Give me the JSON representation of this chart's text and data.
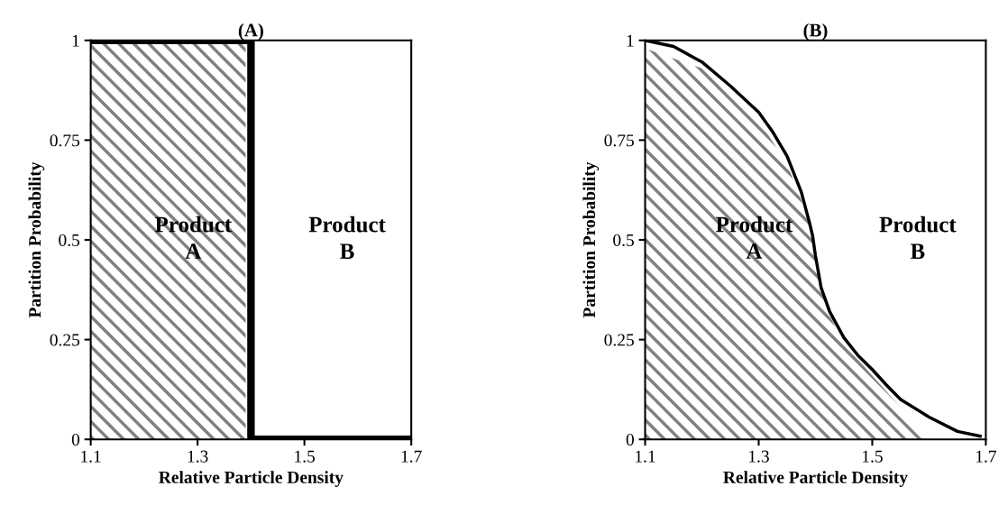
{
  "chart_data": [
    {
      "type": "line",
      "title": "(A)",
      "xlabel": "Relative Particle Density",
      "ylabel": "Partition Probability",
      "xlim": [
        1.1,
        1.7
      ],
      "xticks": [
        1.1,
        1.3,
        1.5,
        1.7
      ],
      "ylim": [
        0,
        1
      ],
      "yticks": [
        0,
        0.25,
        0.5,
        0.75,
        1
      ],
      "grid": false,
      "annotations": [
        "Product\nA",
        "Product\nB"
      ],
      "series": [
        {
          "type": "area",
          "color": "#808080",
          "x": [
            1.1,
            1.39
          ],
          "values": [
            1,
            1
          ]
        },
        {
          "type": "line",
          "color": "#000000",
          "x": [
            1.1,
            1.4,
            1.4,
            1.7
          ],
          "values": [
            1,
            1,
            0,
            0
          ]
        }
      ]
    },
    {
      "type": "line",
      "title": "(B)",
      "xlabel": "Relative Particle Density",
      "ylabel": "Partition Probability",
      "xlim": [
        1.1,
        1.7
      ],
      "xticks": [
        1.1,
        1.3,
        1.5,
        1.7
      ],
      "ylim": [
        0,
        1
      ],
      "yticks": [
        0,
        0.25,
        0.5,
        0.75,
        1
      ],
      "grid": false,
      "annotations": [
        "Product\nA",
        "Product\nB"
      ],
      "series": [
        {
          "type": "area",
          "color": "#808080",
          "x": [
            1.1,
            1.2,
            1.25,
            1.3,
            1.35,
            1.375,
            1.39,
            1.4,
            1.41,
            1.425,
            1.45,
            1.5,
            1.55,
            1.6
          ],
          "values": [
            0.98,
            0.93,
            0.87,
            0.8,
            0.69,
            0.6,
            0.53,
            0.48,
            0.37,
            0.31,
            0.24,
            0.16,
            0.08,
            0
          ]
        },
        {
          "type": "line",
          "color": "#000000",
          "x": [
            1.1,
            1.15,
            1.2,
            1.25,
            1.3,
            1.325,
            1.35,
            1.375,
            1.39,
            1.395,
            1.4,
            1.41,
            1.425,
            1.45,
            1.475,
            1.5,
            1.525,
            1.55,
            1.6,
            1.65,
            1.69
          ],
          "values": [
            1,
            0.985,
            0.946,
            0.886,
            0.82,
            0.77,
            0.71,
            0.62,
            0.54,
            0.51,
            0.46,
            0.38,
            0.32,
            0.255,
            0.21,
            0.175,
            0.136,
            0.1,
            0.056,
            0.02,
            0.008
          ]
        }
      ]
    }
  ]
}
